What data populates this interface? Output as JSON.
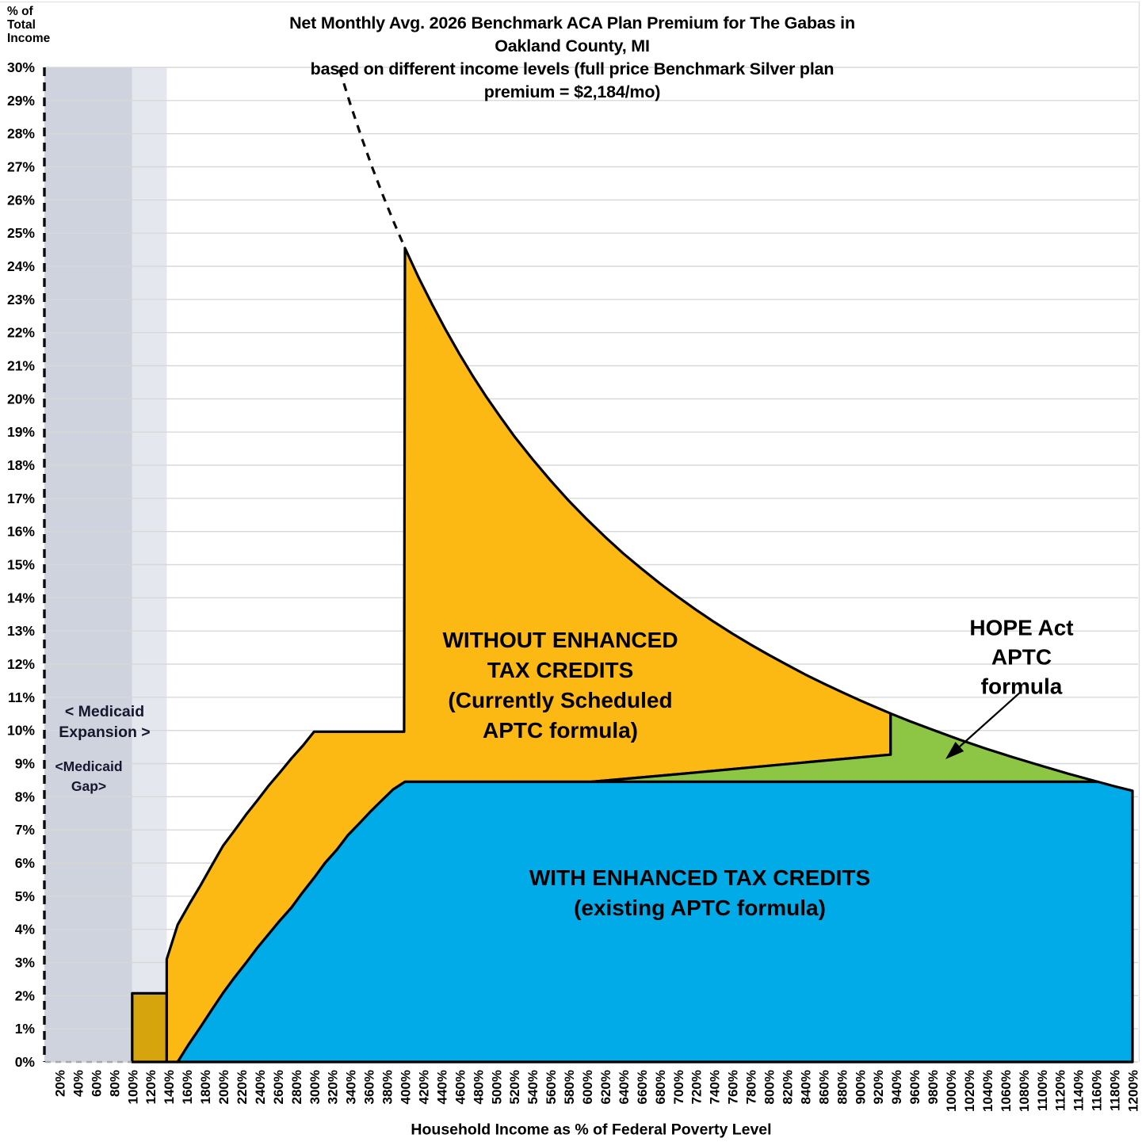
{
  "chart_data": {
    "type": "area",
    "title": "Net Monthly Avg. 2026 Benchmark ACA Plan Premium for The Gabas in Oakland County, MI\nbased on different income levels (full price Benchmark Silver plan premium = $2,184/mo)",
    "full_price_benchmark_premium": "$2,184/mo",
    "xlabel": "Household Income as % of Federal Poverty Level",
    "ylabel": "% of\nTotal\nIncome",
    "grid": true,
    "x_axis": {
      "min": 20,
      "max": 1200,
      "step": 20,
      "unit": "% FPL",
      "tick_labels": [
        "20%",
        "40%",
        "60%",
        "80%",
        "100%",
        "120%",
        "140%",
        "160%",
        "180%",
        "200%",
        "220%",
        "240%",
        "260%",
        "280%",
        "300%",
        "320%",
        "340%",
        "360%",
        "380%",
        "400%",
        "420%",
        "440%",
        "460%",
        "480%",
        "500%",
        "520%",
        "540%",
        "560%",
        "580%",
        "600%",
        "620%",
        "640%",
        "660%",
        "680%",
        "700%",
        "720%",
        "740%",
        "760%",
        "780%",
        "800%",
        "820%",
        "840%",
        "860%",
        "880%",
        "900%",
        "920%",
        "940%",
        "960%",
        "980%",
        "1000%",
        "1020%",
        "1040%",
        "1060%",
        "1080%",
        "1100%",
        "1120%",
        "1140%",
        "1160%",
        "1180%",
        "1200%"
      ]
    },
    "y_axis": {
      "min": 0,
      "max": 30,
      "step": 1,
      "unit": "% of income",
      "tick_labels": [
        "0%",
        "1%",
        "2%",
        "3%",
        "4%",
        "5%",
        "6%",
        "7%",
        "8%",
        "9%",
        "10%",
        "11%",
        "12%",
        "13%",
        "14%",
        "15%",
        "16%",
        "17%",
        "18%",
        "19%",
        "20%",
        "21%",
        "22%",
        "23%",
        "24%",
        "25%",
        "26%",
        "27%",
        "28%",
        "29%",
        "30%"
      ]
    },
    "regions": [
      {
        "name": "Medicaid Expansion",
        "fpl_range": [
          20,
          100
        ],
        "color": "#CFD3DD"
      },
      {
        "name": "Medicaid Gap",
        "fpl_range": [
          100,
          138
        ],
        "color": "#E4E7ED"
      }
    ],
    "annotations": {
      "without_label": "WITHOUT ENHANCED\nTAX CREDITS\n(Currently Scheduled\nAPTC formula)",
      "with_label": "WITH ENHANCED TAX CREDITS\n(existing APTC formula)",
      "hope_label": "HOPE Act\nAPTC formula",
      "medicaid_expansion_label": "< Medicaid\nExpansion >",
      "medicaid_gap_label": "<Medicaid\nGap>"
    },
    "colors": {
      "background": "#FFFFFF",
      "without_enhanced": "#FCB813",
      "with_enhanced": "#00ABE8",
      "hope_act": "#8CC644",
      "gap_strip": "#D6A50D",
      "medicaid_expansion_band": "#CFD3DD",
      "medicaid_gap_band": "#E4E7ED",
      "gridline": "#D8D8D8",
      "outline": "#000000"
    },
    "dashed_projection": {
      "name": "Full price premium continuation (off-chart, dashed)",
      "points": [
        [
          328,
          29.94
        ],
        [
          340,
          28.88
        ],
        [
          352,
          27.9
        ],
        [
          364,
          26.98
        ],
        [
          376,
          26.12
        ],
        [
          388,
          25.31
        ],
        [
          400,
          24.55
        ]
      ]
    },
    "series": [
      {
        "key": "gap_strip",
        "name": "Premium at 100-138% FPL under scheduled formula (Medicaid Gap overlap)",
        "color": "#D6A50D",
        "points": [
          [
            100,
            0
          ],
          [
            100,
            2.07
          ],
          [
            138,
            2.07
          ],
          [
            138,
            0
          ]
        ]
      },
      {
        "key": "without_enhanced",
        "name": "WITHOUT ENHANCED TAX CREDITS (Currently Scheduled APTC formula)",
        "color": "#FCB813",
        "points": [
          [
            138,
            0
          ],
          [
            138,
            2.07
          ],
          [
            138,
            3.1
          ],
          [
            150,
            4.14
          ],
          [
            163,
            4.77
          ],
          [
            175,
            5.32
          ],
          [
            188,
            5.95
          ],
          [
            200,
            6.52
          ],
          [
            213,
            7.0
          ],
          [
            225,
            7.45
          ],
          [
            238,
            7.9
          ],
          [
            250,
            8.33
          ],
          [
            263,
            8.75
          ],
          [
            275,
            9.15
          ],
          [
            288,
            9.55
          ],
          [
            300,
            9.96
          ],
          [
            399,
            9.96
          ],
          [
            400,
            24.55
          ],
          [
            415,
            23.66
          ],
          [
            430,
            22.84
          ],
          [
            445,
            22.07
          ],
          [
            460,
            21.35
          ],
          [
            475,
            20.67
          ],
          [
            490,
            20.04
          ],
          [
            505,
            19.45
          ],
          [
            520,
            18.88
          ],
          [
            540,
            18.19
          ],
          [
            560,
            17.54
          ],
          [
            580,
            16.93
          ],
          [
            600,
            16.37
          ],
          [
            620,
            15.84
          ],
          [
            640,
            15.34
          ],
          [
            660,
            14.88
          ],
          [
            680,
            14.44
          ],
          [
            700,
            14.03
          ],
          [
            720,
            13.64
          ],
          [
            740,
            13.27
          ],
          [
            760,
            12.92
          ],
          [
            780,
            12.59
          ],
          [
            800,
            12.28
          ],
          [
            820,
            11.98
          ],
          [
            840,
            11.69
          ],
          [
            860,
            11.42
          ],
          [
            880,
            11.16
          ],
          [
            900,
            10.91
          ],
          [
            917,
            10.71
          ],
          [
            934,
            10.51
          ],
          [
            934,
            9.27
          ],
          [
            870,
            9.11
          ],
          [
            790,
            8.91
          ],
          [
            700,
            8.68
          ],
          [
            605,
            8.45
          ],
          [
            500,
            8.45
          ],
          [
            400,
            8.45
          ],
          [
            387,
            8.22
          ],
          [
            375,
            7.9
          ],
          [
            362,
            7.55
          ],
          [
            350,
            7.2
          ],
          [
            337,
            6.83
          ],
          [
            325,
            6.4
          ],
          [
            312,
            6.0
          ],
          [
            300,
            5.55
          ],
          [
            287,
            5.1
          ],
          [
            275,
            4.65
          ],
          [
            262,
            4.25
          ],
          [
            250,
            3.85
          ],
          [
            237,
            3.42
          ],
          [
            225,
            2.98
          ],
          [
            212,
            2.53
          ],
          [
            200,
            2.08
          ],
          [
            187,
            1.55
          ],
          [
            175,
            1.05
          ],
          [
            162,
            0.52
          ],
          [
            150,
            0
          ]
        ]
      },
      {
        "key": "hope_act",
        "name": "HOPE Act APTC formula",
        "color": "#8CC644",
        "points": [
          [
            605,
            8.45
          ],
          [
            700,
            8.68
          ],
          [
            790,
            8.91
          ],
          [
            870,
            9.11
          ],
          [
            934,
            9.27
          ],
          [
            934,
            10.51
          ],
          [
            955,
            10.28
          ],
          [
            980,
            10.02
          ],
          [
            1010,
            9.72
          ],
          [
            1040,
            9.44
          ],
          [
            1070,
            9.18
          ],
          [
            1100,
            8.93
          ],
          [
            1130,
            8.69
          ],
          [
            1162,
            8.45
          ]
        ]
      },
      {
        "key": "with_enhanced",
        "name": "WITH ENHANCED TAX CREDITS (existing APTC formula)",
        "color": "#00ABE8",
        "points": [
          [
            150,
            0
          ],
          [
            162,
            0.52
          ],
          [
            175,
            1.05
          ],
          [
            187,
            1.55
          ],
          [
            200,
            2.08
          ],
          [
            212,
            2.53
          ],
          [
            225,
            2.98
          ],
          [
            237,
            3.42
          ],
          [
            250,
            3.85
          ],
          [
            262,
            4.25
          ],
          [
            275,
            4.65
          ],
          [
            287,
            5.1
          ],
          [
            300,
            5.55
          ],
          [
            312,
            6.0
          ],
          [
            325,
            6.4
          ],
          [
            337,
            6.83
          ],
          [
            350,
            7.2
          ],
          [
            362,
            7.55
          ],
          [
            375,
            7.9
          ],
          [
            387,
            8.22
          ],
          [
            400,
            8.45
          ],
          [
            600,
            8.45
          ],
          [
            800,
            8.45
          ],
          [
            1000,
            8.45
          ],
          [
            1162,
            8.45
          ],
          [
            1181,
            8.31
          ],
          [
            1200,
            8.18
          ],
          [
            1200,
            0
          ]
        ]
      }
    ]
  }
}
